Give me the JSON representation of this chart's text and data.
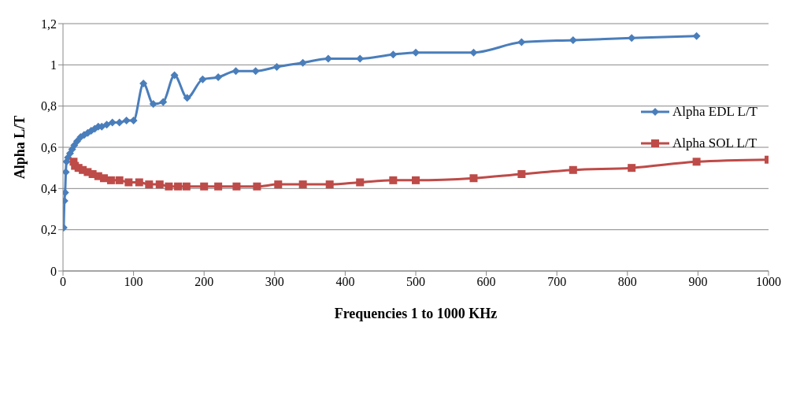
{
  "chart_data": {
    "type": "line",
    "xlabel": "Frequencies 1 to 1000 KHz",
    "ylabel": "Alpha L/T",
    "xlim": [
      0,
      1000
    ],
    "xticks": [
      0,
      100,
      200,
      300,
      400,
      500,
      600,
      700,
      800,
      900,
      1000
    ],
    "ylim": [
      0,
      1.2
    ],
    "yticks": [
      0,
      {
        "value": 0.2,
        "label": "0,2"
      },
      {
        "value": 0.4,
        "label": "0,4"
      },
      {
        "value": 0.6,
        "label": "0,6"
      },
      {
        "value": 0.8,
        "label": "0,8"
      },
      1,
      {
        "value": 1.2,
        "label": "1,2"
      }
    ],
    "grid": "y",
    "legend": "right",
    "line_style": "solid",
    "series": [
      {
        "name": "Alpha EDL L/T",
        "color": "#4a7ebb",
        "marker": "diamond",
        "x": [
          1,
          2,
          3,
          4,
          5,
          7,
          10,
          13,
          16,
          20,
          25,
          30,
          35,
          40,
          45,
          50,
          55,
          62,
          70,
          80,
          90,
          100,
          114,
          128,
          142,
          158,
          176,
          198,
          220,
          245,
          273,
          303,
          340,
          376,
          421,
          468,
          500,
          582,
          650,
          723,
          806,
          898
        ],
        "values": [
          0.21,
          0.34,
          0.38,
          0.48,
          0.53,
          0.55,
          0.57,
          0.59,
          0.61,
          0.63,
          0.65,
          0.66,
          0.67,
          0.68,
          0.69,
          0.7,
          0.7,
          0.71,
          0.72,
          0.72,
          0.73,
          0.73,
          0.91,
          0.81,
          0.82,
          0.95,
          0.84,
          0.93,
          0.94,
          0.97,
          0.97,
          0.99,
          1.01,
          1.03,
          1.03,
          1.05,
          1.06,
          1.06,
          1.11,
          1.12,
          1.13,
          1.14
        ]
      },
      {
        "name": "Alpha SOL L/T",
        "color": "#be4b48",
        "marker": "square",
        "x": [
          15,
          17,
          22,
          28,
          35,
          42,
          50,
          58,
          68,
          80,
          93,
          108,
          122,
          137,
          150,
          163,
          175,
          200,
          220,
          246,
          275,
          305,
          340,
          378,
          421,
          468,
          500,
          582,
          650,
          723,
          806,
          898,
          1000
        ],
        "values": [
          0.53,
          0.51,
          0.5,
          0.49,
          0.48,
          0.47,
          0.46,
          0.45,
          0.44,
          0.44,
          0.43,
          0.43,
          0.42,
          0.42,
          0.41,
          0.41,
          0.41,
          0.41,
          0.41,
          0.41,
          0.41,
          0.42,
          0.42,
          0.42,
          0.43,
          0.44,
          0.44,
          0.45,
          0.47,
          0.49,
          0.5,
          0.53,
          0.54
        ]
      }
    ]
  }
}
